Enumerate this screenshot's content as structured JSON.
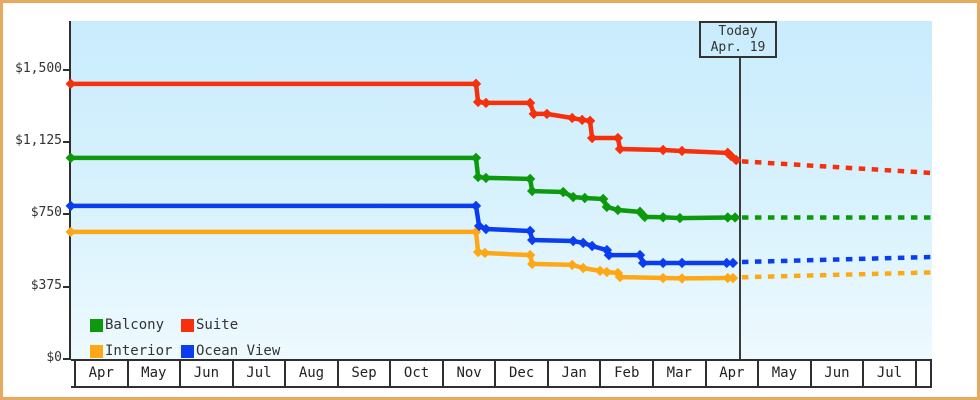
{
  "frame": {
    "border_color": "#e9a85f",
    "background": "#ffffff"
  },
  "plot": {
    "bg_top": "#c9ecfd",
    "bg_bottom": "#eefafe",
    "axis_color": "#2f2f2f"
  },
  "today": {
    "line1": "Today",
    "line2": "Apr. 19"
  },
  "legend": {
    "position": "bottom-left",
    "items": [
      {
        "label": "Balcony",
        "color": "#0c9a0c"
      },
      {
        "label": "Suite",
        "color": "#f5300a"
      },
      {
        "label": "Interior",
        "color": "#ffa816"
      },
      {
        "label": "Ocean View",
        "color": "#0a3cf0"
      }
    ]
  },
  "chart_data": {
    "type": "line",
    "title": "",
    "grid": false,
    "today_marker": {
      "label": "Today",
      "date": "Apr. 19",
      "x_month": 12.63
    },
    "x_axis": {
      "tick_labels": [
        "Apr",
        "May",
        "Jun",
        "Jul",
        "Aug",
        "Sep",
        "Oct",
        "Nov",
        "Dec",
        "Jan",
        "Feb",
        "Mar",
        "Apr",
        "May",
        "Jun",
        "Jul"
      ],
      "xlim_months": [
        -0.1,
        16.28
      ]
    },
    "y_axis": {
      "tick_labels": [
        "$1,500",
        "$1,125",
        "$750",
        "$375",
        "$0"
      ],
      "tick_values": [
        1500,
        1125,
        750,
        375,
        0
      ],
      "ylim": [
        0,
        1753
      ],
      "unit": "USD"
    },
    "series": [
      {
        "name": "Interior",
        "color": "#ffa816",
        "points": [
          [
            -0.1,
            659
          ],
          [
            7.61,
            659
          ],
          [
            7.65,
            555
          ],
          [
            7.78,
            550
          ],
          [
            8.64,
            539
          ],
          [
            8.68,
            493
          ],
          [
            9.44,
            488
          ],
          [
            9.65,
            472
          ],
          [
            9.97,
            457
          ],
          [
            10.1,
            451
          ],
          [
            10.31,
            446
          ],
          [
            10.35,
            425
          ],
          [
            11.17,
            420
          ],
          [
            11.53,
            418
          ],
          [
            12.4,
            420
          ],
          [
            12.5,
            420
          ]
        ],
        "projection": [
          [
            12.67,
            424
          ],
          [
            16.28,
            449
          ]
        ]
      },
      {
        "name": "Ocean View",
        "color": "#0a3cf0",
        "points": [
          [
            -0.1,
            794
          ],
          [
            7.61,
            794
          ],
          [
            7.67,
            690
          ],
          [
            7.8,
            674
          ],
          [
            8.64,
            664
          ],
          [
            8.68,
            617
          ],
          [
            9.46,
            612
          ],
          [
            9.65,
            602
          ],
          [
            9.82,
            586
          ],
          [
            10.1,
            565
          ],
          [
            10.14,
            539
          ],
          [
            10.73,
            539
          ],
          [
            10.79,
            498
          ],
          [
            11.17,
            498
          ],
          [
            11.53,
            498
          ],
          [
            12.38,
            498
          ],
          [
            12.5,
            498
          ]
        ],
        "projection": [
          [
            12.67,
            503
          ],
          [
            16.28,
            529
          ]
        ]
      },
      {
        "name": "Balcony",
        "color": "#0c9a0c",
        "points": [
          [
            -0.1,
            1043
          ],
          [
            7.61,
            1043
          ],
          [
            7.65,
            944
          ],
          [
            7.8,
            939
          ],
          [
            8.64,
            934
          ],
          [
            8.68,
            871
          ],
          [
            9.27,
            866
          ],
          [
            9.46,
            840
          ],
          [
            9.68,
            835
          ],
          [
            10.03,
            830
          ],
          [
            10.1,
            789
          ],
          [
            10.31,
            773
          ],
          [
            10.73,
            763
          ],
          [
            10.82,
            737
          ],
          [
            11.17,
            735
          ],
          [
            11.49,
            731
          ],
          [
            12.4,
            734
          ],
          [
            12.54,
            734
          ]
        ],
        "projection": [
          [
            12.67,
            734
          ],
          [
            16.28,
            734
          ]
        ]
      },
      {
        "name": "Suite",
        "color": "#f5300a",
        "points": [
          [
            -0.1,
            1427
          ],
          [
            7.61,
            1427
          ],
          [
            7.65,
            1333
          ],
          [
            7.8,
            1328
          ],
          [
            8.64,
            1328
          ],
          [
            8.71,
            1271
          ],
          [
            8.96,
            1271
          ],
          [
            9.44,
            1250
          ],
          [
            9.63,
            1240
          ],
          [
            9.78,
            1235
          ],
          [
            9.82,
            1146
          ],
          [
            10.31,
            1146
          ],
          [
            10.35,
            1089
          ],
          [
            11.17,
            1084
          ],
          [
            11.53,
            1079
          ],
          [
            12.4,
            1069
          ],
          [
            12.46,
            1053
          ],
          [
            12.56,
            1032
          ]
        ],
        "projection": [
          [
            12.67,
            1025
          ],
          [
            16.28,
            965
          ]
        ]
      }
    ]
  }
}
